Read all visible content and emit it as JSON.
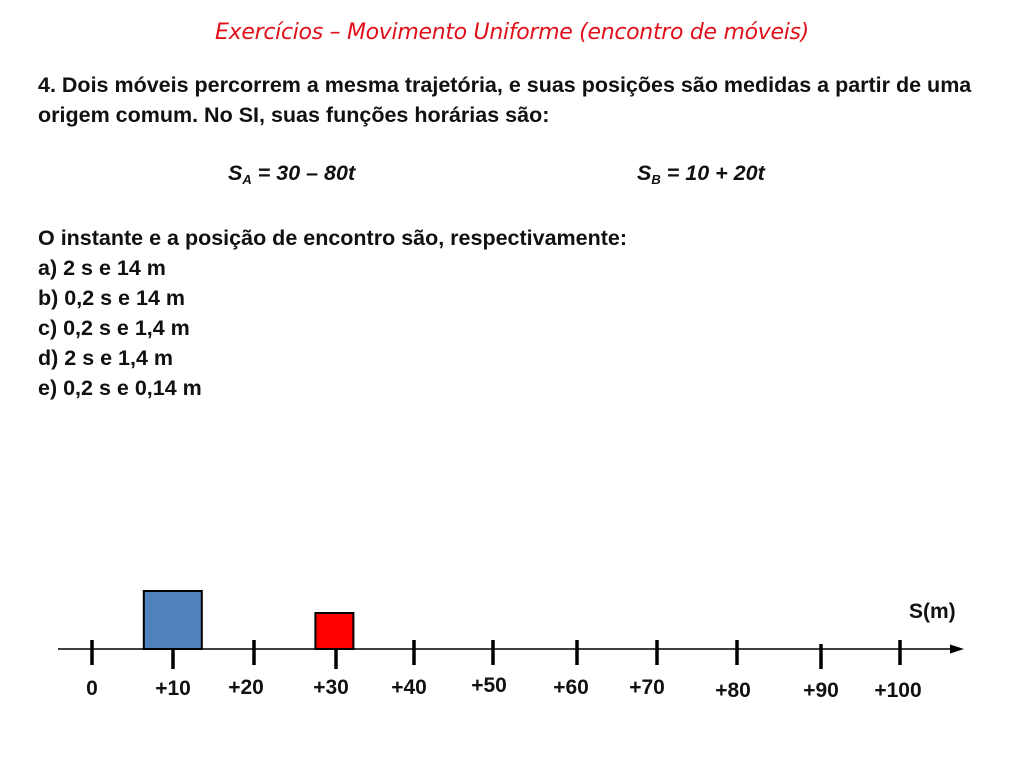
{
  "title": "Exercícios – Movimento Uniforme (encontro de móveis)",
  "statement": "4. Dois móveis percorrem a mesma trajetória, e suas posições são medidas a partir de uma origem comum. No SI, suas funções horárias são:",
  "equations": {
    "a": {
      "symbol": "S",
      "subscript": "A",
      "rhs": " = 30 – 80t"
    },
    "b": {
      "symbol": "S",
      "subscript": "B",
      "rhs": " = 10 + 20t"
    }
  },
  "question": "O instante e a posição de encontro são, respectivamente:",
  "options": [
    "a) 2 s e 14 m",
    "b) 0,2 s e 14 m",
    "c) 0,2 s e 1,4 m",
    "d) 2 s e 1,4 m",
    "e) 0,2 s e 0,14 m"
  ],
  "axis": {
    "unit_label": "S(m)",
    "tick_labels": [
      "0",
      "+10",
      "+20",
      "+30",
      "+40",
      "+50",
      "+60",
      "+70",
      "+80",
      "+90",
      "+100"
    ]
  },
  "bodies": [
    {
      "name": "body-blue",
      "position_m": 10,
      "color": "#4f81bd"
    },
    {
      "name": "body-red",
      "position_m": 30,
      "color": "#ff0000"
    }
  ]
}
